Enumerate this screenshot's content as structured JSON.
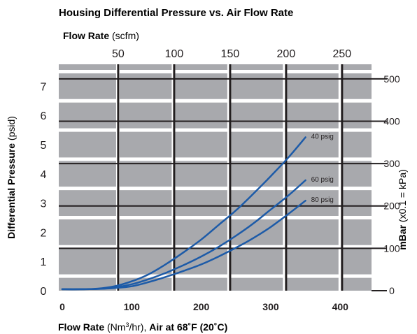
{
  "chart_data": {
    "type": "line",
    "title": "Housing Differential Pressure vs. Air Flow Rate",
    "top_axis": {
      "label_bold": "Flow Rate",
      "label_unit": " (scfm)",
      "ticks": [
        50,
        100,
        150,
        200,
        250
      ]
    },
    "x_axis": {
      "label_bold": "Flow Rate",
      "label_unit": " (Nm",
      "label_sup": "3",
      "label_unit_end": "/hr), ",
      "label_condition": "Air at 68˚F (20˚C)",
      "range": [
        -5,
        445
      ],
      "ticks": [
        0,
        100,
        200,
        300,
        400
      ]
    },
    "y_axis": {
      "label_bold": "Differential Pressure",
      "label_unit": " (psid)",
      "range": [
        0,
        7.75
      ],
      "ticks": [
        0,
        1,
        2,
        3,
        4,
        5,
        6,
        7
      ]
    },
    "right_axis": {
      "label_bold": "mBar",
      "label_unit": " (x0.1 = kPa)",
      "ticks": [
        0,
        100,
        200,
        300,
        400,
        500
      ]
    },
    "series": [
      {
        "name": "40 psig",
        "x": [
          0,
          25,
          50,
          75,
          100,
          125,
          150,
          175,
          200,
          225,
          250,
          275,
          300,
          325,
          350
        ],
        "y": [
          0.05,
          0.05,
          0.07,
          0.15,
          0.32,
          0.57,
          0.92,
          1.32,
          1.75,
          2.25,
          2.75,
          3.32,
          3.92,
          4.55,
          5.25
        ]
      },
      {
        "name": "60 psig",
        "x": [
          0,
          25,
          50,
          75,
          100,
          125,
          150,
          175,
          200,
          225,
          250,
          275,
          300,
          325,
          350
        ],
        "y": [
          0.05,
          0.05,
          0.06,
          0.11,
          0.22,
          0.4,
          0.62,
          0.88,
          1.17,
          1.5,
          1.88,
          2.3,
          2.78,
          3.25,
          3.78
        ]
      },
      {
        "name": "80 psig",
        "x": [
          0,
          25,
          50,
          75,
          100,
          125,
          150,
          175,
          200,
          225,
          250,
          275,
          300,
          325,
          350
        ],
        "y": [
          0.05,
          0.05,
          0.06,
          0.09,
          0.15,
          0.3,
          0.48,
          0.68,
          0.9,
          1.17,
          1.47,
          1.8,
          2.18,
          2.62,
          3.08
        ]
      }
    ],
    "grid": true,
    "colors": {
      "plot_background": "#a8a9ad",
      "white_grid": "#ffffff",
      "black_grid": "#231f20",
      "curve": "#1d5ba8",
      "text": "#231f20"
    }
  }
}
